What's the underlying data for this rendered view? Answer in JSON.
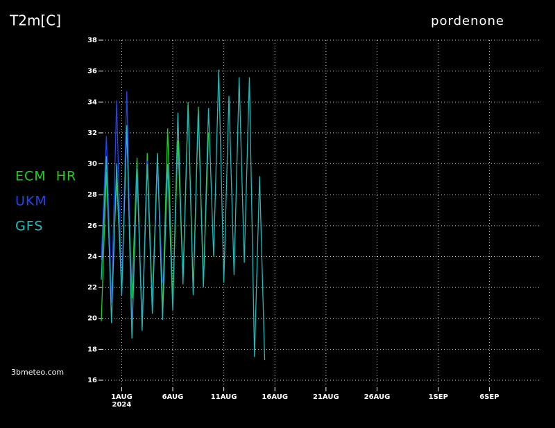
{
  "chart_data": {
    "type": "line",
    "title": "T2m[C]",
    "subtitle": "pordenone",
    "source": "3bmeteo.com",
    "year_label": "2024",
    "x": [
      "2024-07-30T00:00Z",
      "2024-07-30T12:00Z",
      "2024-07-31T00:00Z",
      "2024-07-31T12:00Z",
      "2024-08-01T00:00Z",
      "2024-08-01T12:00Z",
      "2024-08-02T00:00Z",
      "2024-08-02T12:00Z",
      "2024-08-03T00:00Z",
      "2024-08-03T12:00Z",
      "2024-08-04T00:00Z",
      "2024-08-04T12:00Z",
      "2024-08-05T00:00Z",
      "2024-08-05T12:00Z",
      "2024-08-06T00:00Z",
      "2024-08-06T12:00Z",
      "2024-08-07T00:00Z",
      "2024-08-07T12:00Z",
      "2024-08-08T00:00Z",
      "2024-08-08T12:00Z",
      "2024-08-09T00:00Z",
      "2024-08-09T12:00Z",
      "2024-08-10T00:00Z",
      "2024-08-10T12:00Z",
      "2024-08-11T00:00Z",
      "2024-08-11T12:00Z",
      "2024-08-12T00:00Z",
      "2024-08-12T12:00Z",
      "2024-08-13T00:00Z",
      "2024-08-13T12:00Z",
      "2024-08-14T00:00Z",
      "2024-08-14T12:00Z",
      "2024-08-15T00:00Z"
    ],
    "series": [
      {
        "name": "ECM  HR",
        "color": "#22cc22",
        "values": [
          19.8,
          29.5,
          21,
          29,
          22,
          32.3,
          21.3,
          30.4,
          19.5,
          30.7,
          21,
          30.6,
          20.5,
          32.3,
          21,
          31.5,
          22.5,
          34,
          21.7,
          33.7,
          22.3,
          32,
          null,
          null,
          null,
          null,
          null,
          null,
          null,
          null,
          null,
          null,
          null
        ]
      },
      {
        "name": "UKM",
        "color": "#2244ee",
        "values": [
          23.8,
          31.8,
          21,
          34.1,
          21.5,
          34.7,
          19.2,
          29.8,
          19.5,
          30.2,
          20.5,
          29.9,
          22.3,
          null,
          null,
          null,
          null,
          null,
          null,
          null,
          null,
          null,
          null,
          null,
          null,
          null,
          null,
          null,
          null,
          null,
          null,
          null,
          null
        ]
      },
      {
        "name": "GFS",
        "color": "#22bbbb",
        "values": [
          22.5,
          30.5,
          19.7,
          30,
          21.5,
          32.5,
          18.7,
          29.7,
          19.2,
          30,
          20.3,
          30.7,
          19.9,
          30,
          20.5,
          33.3,
          22.2,
          33.8,
          21.5,
          33.5,
          22,
          33.6,
          24,
          36.1,
          22.3,
          34.4,
          22.8,
          35.6,
          23.6,
          35.6,
          17.5,
          29.2,
          17.3
        ]
      }
    ],
    "xlim": [
      "2024-07-30T00:00Z",
      "2024-09-11T00:00Z"
    ],
    "xticks": [
      {
        "value": "2024-08-01T00:00Z",
        "label": "1AUG"
      },
      {
        "value": "2024-08-06T00:00Z",
        "label": "6AUG"
      },
      {
        "value": "2024-08-11T00:00Z",
        "label": "11AUG"
      },
      {
        "value": "2024-08-16T00:00Z",
        "label": "16AUG"
      },
      {
        "value": "2024-08-21T00:00Z",
        "label": "21AUG"
      },
      {
        "value": "2024-08-26T00:00Z",
        "label": "26AUG"
      },
      {
        "value": "2024-09-01T00:00Z",
        "label": "1SEP"
      },
      {
        "value": "2024-09-06T00:00Z",
        "label": "6SEP"
      }
    ],
    "ylim": [
      16,
      38
    ],
    "yticks": [
      16,
      18,
      20,
      22,
      24,
      26,
      28,
      30,
      32,
      34,
      36,
      38
    ],
    "grid": true
  }
}
